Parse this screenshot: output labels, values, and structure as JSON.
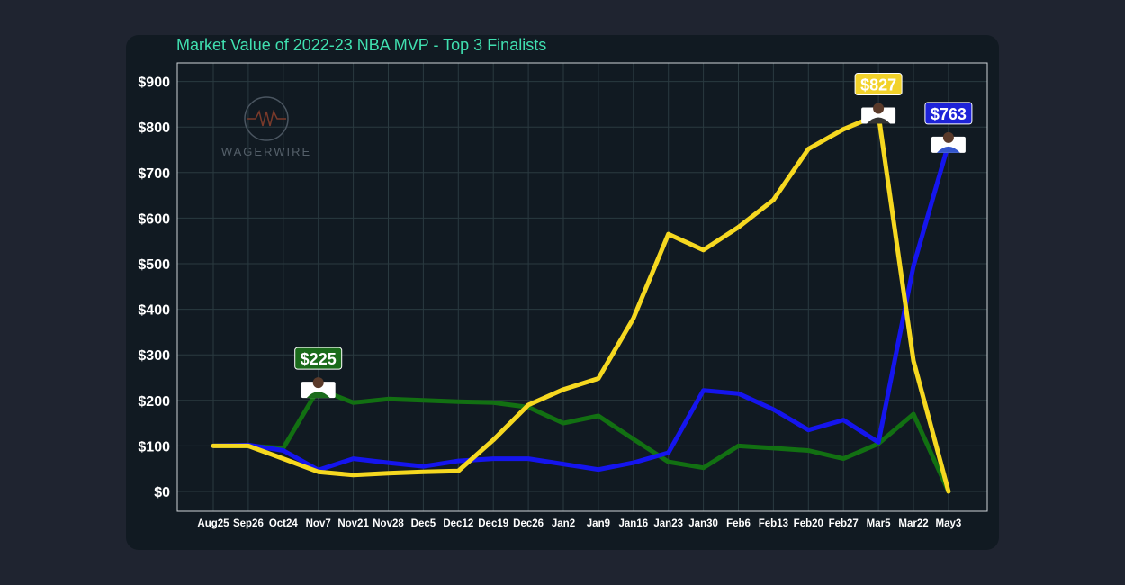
{
  "chart_data": {
    "type": "line",
    "title": "Market Value of 2022-23 NBA MVP - Top 3 Finalists",
    "xlabel": "",
    "ylabel": "",
    "ylim": [
      0,
      900
    ],
    "yticks": [
      0,
      100,
      200,
      300,
      400,
      500,
      600,
      700,
      800,
      900
    ],
    "ytick_labels": [
      "$0",
      "$100",
      "$200",
      "$300",
      "$400",
      "$500",
      "$600",
      "$700",
      "$800",
      "$900"
    ],
    "grid": true,
    "categories": [
      "Aug25",
      "Sep26",
      "Oct24",
      "Nov7",
      "Nov21",
      "Nov28",
      "Dec5",
      "Dec12",
      "Dec19",
      "Dec26",
      "Jan2",
      "Jan9",
      "Jan16",
      "Jan23",
      "Jan30",
      "Feb6",
      "Feb13",
      "Feb20",
      "Feb27",
      "Mar5",
      "Mar22",
      "May3"
    ],
    "series": [
      {
        "name": "green",
        "color": "#127012",
        "values": [
          100,
          100,
          95,
          225,
          195,
          203,
          200,
          197,
          195,
          185,
          150,
          166,
          115,
          65,
          52,
          100,
          95,
          90,
          72,
          105,
          170,
          0
        ],
        "callout": {
          "index": 3,
          "label": "$225",
          "bg": "#1b6b1b"
        }
      },
      {
        "name": "blue",
        "color": "#1515ee",
        "values": [
          100,
          102,
          90,
          47,
          72,
          63,
          55,
          67,
          72,
          72,
          60,
          48,
          63,
          85,
          222,
          215,
          180,
          135,
          157,
          108,
          495,
          763
        ],
        "callout": {
          "index": 21,
          "label": "$763",
          "bg": "#1e23d8"
        }
      },
      {
        "name": "yellow",
        "color": "#f6d820",
        "values": [
          100,
          100,
          72,
          43,
          36,
          40,
          43,
          45,
          113,
          190,
          224,
          248,
          380,
          565,
          530,
          580,
          640,
          752,
          795,
          827,
          287,
          0
        ],
        "callout": {
          "index": 19,
          "label": "$827",
          "bg": "#f2d22a"
        }
      }
    ]
  },
  "watermark": {
    "text": "WAGERWIRE",
    "color": "#55606a"
  }
}
